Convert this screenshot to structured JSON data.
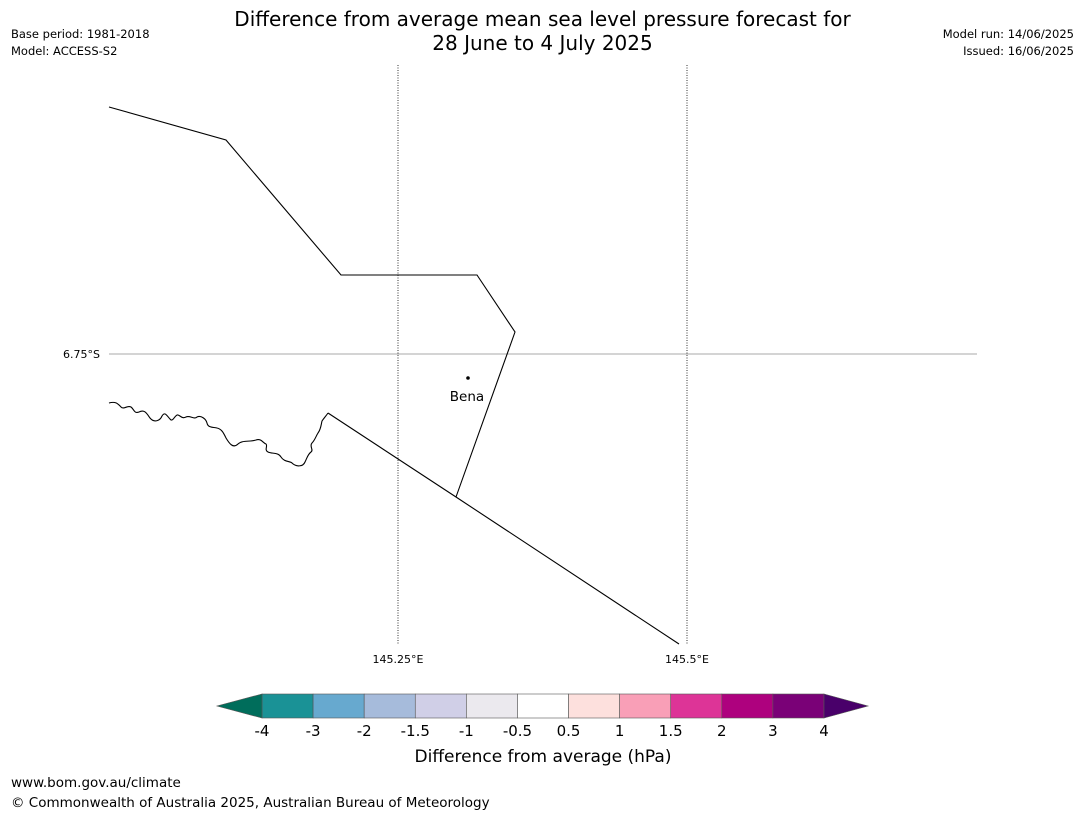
{
  "header": {
    "title_line1": "Difference from average mean sea level pressure forecast for",
    "title_line2": "28 June to 4 July 2025",
    "base_period": "Base period: 1981-2018",
    "model": "Model: ACCESS-S2",
    "model_run": "Model run: 14/06/2025",
    "issued": "Issued: 16/06/2025"
  },
  "map": {
    "lat_labels": [
      "6.75°S"
    ],
    "lon_labels": [
      "145.25°E",
      "145.5°E"
    ],
    "place": {
      "name": "Bena"
    }
  },
  "colorbar": {
    "title": "Difference from average (hPa)",
    "tick_labels": [
      "-4",
      "-3",
      "-2",
      "-1.5",
      "-1",
      "-0.5",
      "0.5",
      "1",
      "1.5",
      "2",
      "3",
      "4"
    ],
    "colors": [
      "#1a9296",
      "#67a9cf",
      "#a6bbdb",
      "#d0cfe7",
      "#ebe9ee",
      "#ffffff",
      "#fde0dd",
      "#f99fb7",
      "#dd3497",
      "#ae017e",
      "#7a0177"
    ],
    "under_color": "#006d5b",
    "over_color": "#49006a"
  },
  "footer": {
    "url": "www.bom.gov.au/climate",
    "copyright": "© Commonwealth of Australia 2025, Australian Bureau of Meteorology"
  }
}
